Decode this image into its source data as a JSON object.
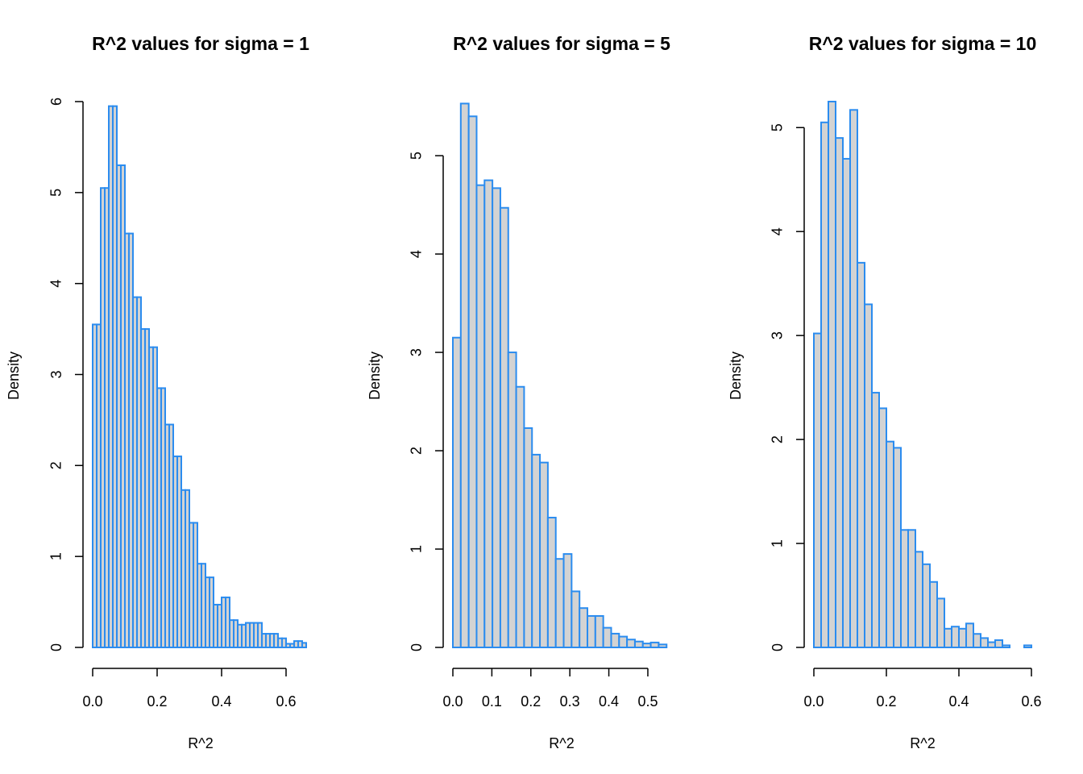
{
  "chart_data": [
    {
      "type": "bar",
      "title": "R^2 values for sigma = 1",
      "xlabel": "R^2",
      "ylabel": "Density",
      "bin_width": 0.0125,
      "x_range": [
        0,
        0.675
      ],
      "y_range": [
        0,
        6
      ],
      "xticks": [
        0.0,
        0.2,
        0.4,
        0.6
      ],
      "xtick_labels": [
        "0.0",
        "0.2",
        "0.4",
        "0.6"
      ],
      "yticks": [
        0,
        1,
        2,
        3,
        4,
        5,
        6
      ],
      "ytick_labels": [
        "0",
        "1",
        "2",
        "3",
        "4",
        "5",
        "6"
      ],
      "bin_starts": [
        0.0,
        0.0125,
        0.025,
        0.0375,
        0.05,
        0.0625,
        0.075,
        0.0875,
        0.1,
        0.1125,
        0.125,
        0.1375,
        0.15,
        0.1625,
        0.175,
        0.1875,
        0.2,
        0.2125,
        0.225,
        0.2375,
        0.25,
        0.2625,
        0.275,
        0.2875,
        0.3,
        0.3125,
        0.325,
        0.3375,
        0.35,
        0.3625,
        0.375,
        0.3875,
        0.4,
        0.4125,
        0.425,
        0.4375,
        0.45,
        0.4625,
        0.475,
        0.4875,
        0.5,
        0.5125,
        0.525,
        0.5375,
        0.55,
        0.5625,
        0.575,
        0.5875,
        0.6,
        0.6125,
        0.625,
        0.6375,
        0.65
      ],
      "values": [
        3.55,
        3.55,
        5.05,
        5.05,
        5.95,
        5.95,
        5.3,
        5.3,
        4.55,
        4.55,
        3.85,
        3.85,
        3.5,
        3.5,
        3.3,
        3.3,
        2.85,
        2.85,
        2.45,
        2.45,
        2.1,
        2.1,
        1.73,
        1.73,
        1.37,
        1.37,
        0.92,
        0.92,
        0.77,
        0.77,
        0.47,
        0.47,
        0.55,
        0.55,
        0.3,
        0.3,
        0.25,
        0.25,
        0.27,
        0.27,
        0.27,
        0.27,
        0.15,
        0.15,
        0.15,
        0.15,
        0.1,
        0.1,
        0.04,
        0.04,
        0.07,
        0.07,
        0.05
      ]
    },
    {
      "type": "bar",
      "title": "R^2 values for sigma = 5",
      "xlabel": "R^2",
      "ylabel": "Density",
      "bin_width": 0.0203,
      "x_range": [
        0,
        0.56
      ],
      "y_range": [
        0,
        5.55
      ],
      "xticks": [
        0.0,
        0.1,
        0.2,
        0.3,
        0.4,
        0.5
      ],
      "xtick_labels": [
        "0.0",
        "0.1",
        "0.2",
        "0.3",
        "0.4",
        "0.5"
      ],
      "yticks": [
        0,
        1,
        2,
        3,
        4,
        5
      ],
      "ytick_labels": [
        "0",
        "1",
        "2",
        "3",
        "4",
        "5"
      ],
      "values": [
        3.15,
        5.53,
        5.4,
        4.7,
        4.75,
        4.67,
        4.47,
        3.0,
        2.65,
        2.23,
        1.96,
        1.88,
        1.32,
        0.9,
        0.95,
        0.57,
        0.4,
        0.32,
        0.32,
        0.2,
        0.14,
        0.11,
        0.08,
        0.06,
        0.04,
        0.05,
        0.03
      ]
    },
    {
      "type": "bar",
      "title": "R^2 values for sigma = 10",
      "xlabel": "R^2",
      "ylabel": "Density",
      "bin_width": 0.02,
      "x_range": [
        0,
        0.6
      ],
      "y_range": [
        0,
        5.25
      ],
      "xticks": [
        0.0,
        0.2,
        0.4,
        0.6
      ],
      "xtick_labels": [
        "0.0",
        "0.2",
        "0.4",
        "0.6"
      ],
      "yticks": [
        0,
        1,
        2,
        3,
        4,
        5
      ],
      "ytick_labels": [
        "0",
        "1",
        "2",
        "3",
        "4",
        "5"
      ],
      "values": [
        3.02,
        5.05,
        5.25,
        4.9,
        4.7,
        5.17,
        3.7,
        3.3,
        2.45,
        2.3,
        1.98,
        1.92,
        1.13,
        1.13,
        0.92,
        0.8,
        0.63,
        0.47,
        0.18,
        0.2,
        0.18,
        0.23,
        0.13,
        0.09,
        0.05,
        0.07,
        0.02,
        0.0,
        0.0,
        0.02
      ]
    }
  ],
  "colors": {
    "bar_fill": "#d3d3d3",
    "bar_stroke": "#2b8cef",
    "axis": "#000000",
    "text": "#000000"
  }
}
